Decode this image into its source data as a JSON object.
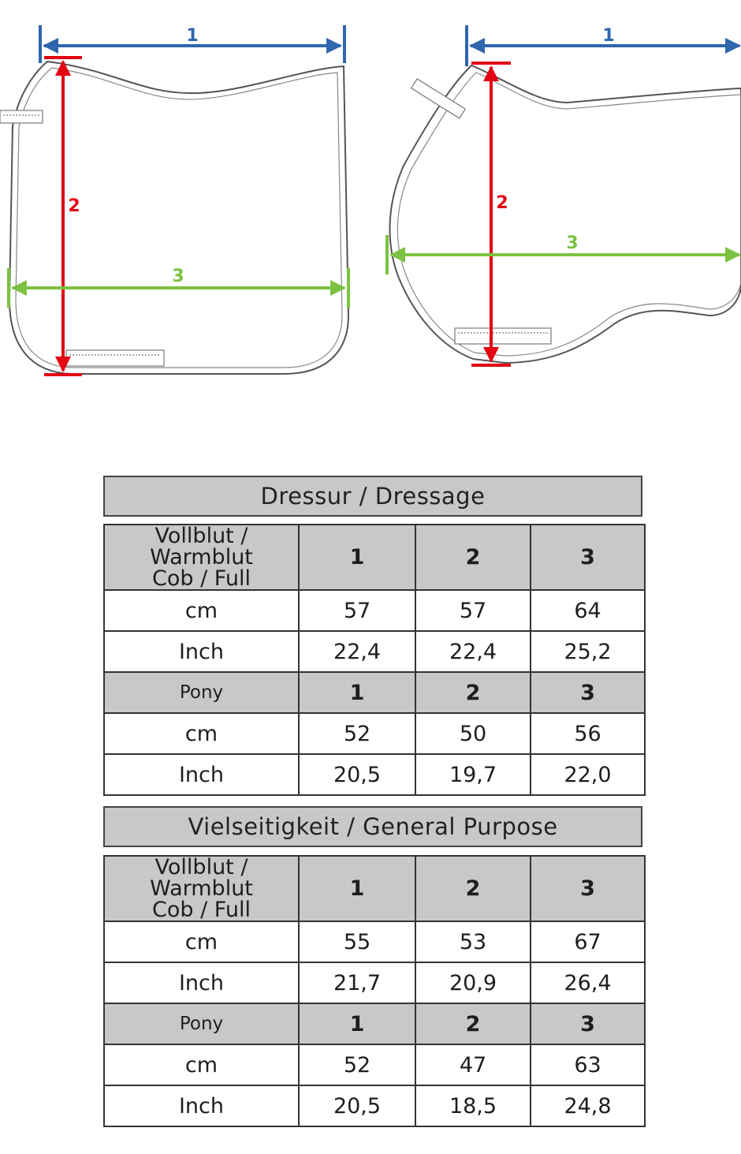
{
  "diagram": {
    "labels": {
      "one": "1",
      "two": "2",
      "three": "3"
    },
    "colors": {
      "one": "#2f66ad",
      "two": "#e30613",
      "three": "#7cc242",
      "outline": "#555555"
    }
  },
  "tables": [
    {
      "title": "Dressur / Dressage",
      "groups": [
        {
          "label_line1": "Vollblut / Warmblut",
          "label_line2": "Cob / Full",
          "headers": [
            "1",
            "2",
            "3"
          ],
          "rows": [
            {
              "unit": "cm",
              "values": [
                "57",
                "57",
                "64"
              ]
            },
            {
              "unit": "Inch",
              "values": [
                "22,4",
                "22,4",
                "25,2"
              ]
            }
          ]
        },
        {
          "label_line1": "Pony",
          "label_line2": "",
          "headers": [
            "1",
            "2",
            "3"
          ],
          "rows": [
            {
              "unit": "cm",
              "values": [
                "52",
                "50",
                "56"
              ]
            },
            {
              "unit": "Inch",
              "values": [
                "20,5",
                "19,7",
                "22,0"
              ]
            }
          ]
        }
      ]
    },
    {
      "title": "Vielseitigkeit / General Purpose",
      "groups": [
        {
          "label_line1": "Vollblut / Warmblut",
          "label_line2": "Cob / Full",
          "headers": [
            "1",
            "2",
            "3"
          ],
          "rows": [
            {
              "unit": "cm",
              "values": [
                "55",
                "53",
                "67"
              ]
            },
            {
              "unit": "Inch",
              "values": [
                "21,7",
                "20,9",
                "26,4"
              ]
            }
          ]
        },
        {
          "label_line1": "Pony",
          "label_line2": "",
          "headers": [
            "1",
            "2",
            "3"
          ],
          "rows": [
            {
              "unit": "cm",
              "values": [
                "52",
                "47",
                "63"
              ]
            },
            {
              "unit": "Inch",
              "values": [
                "20,5",
                "18,5",
                "24,8"
              ]
            }
          ]
        }
      ]
    }
  ]
}
